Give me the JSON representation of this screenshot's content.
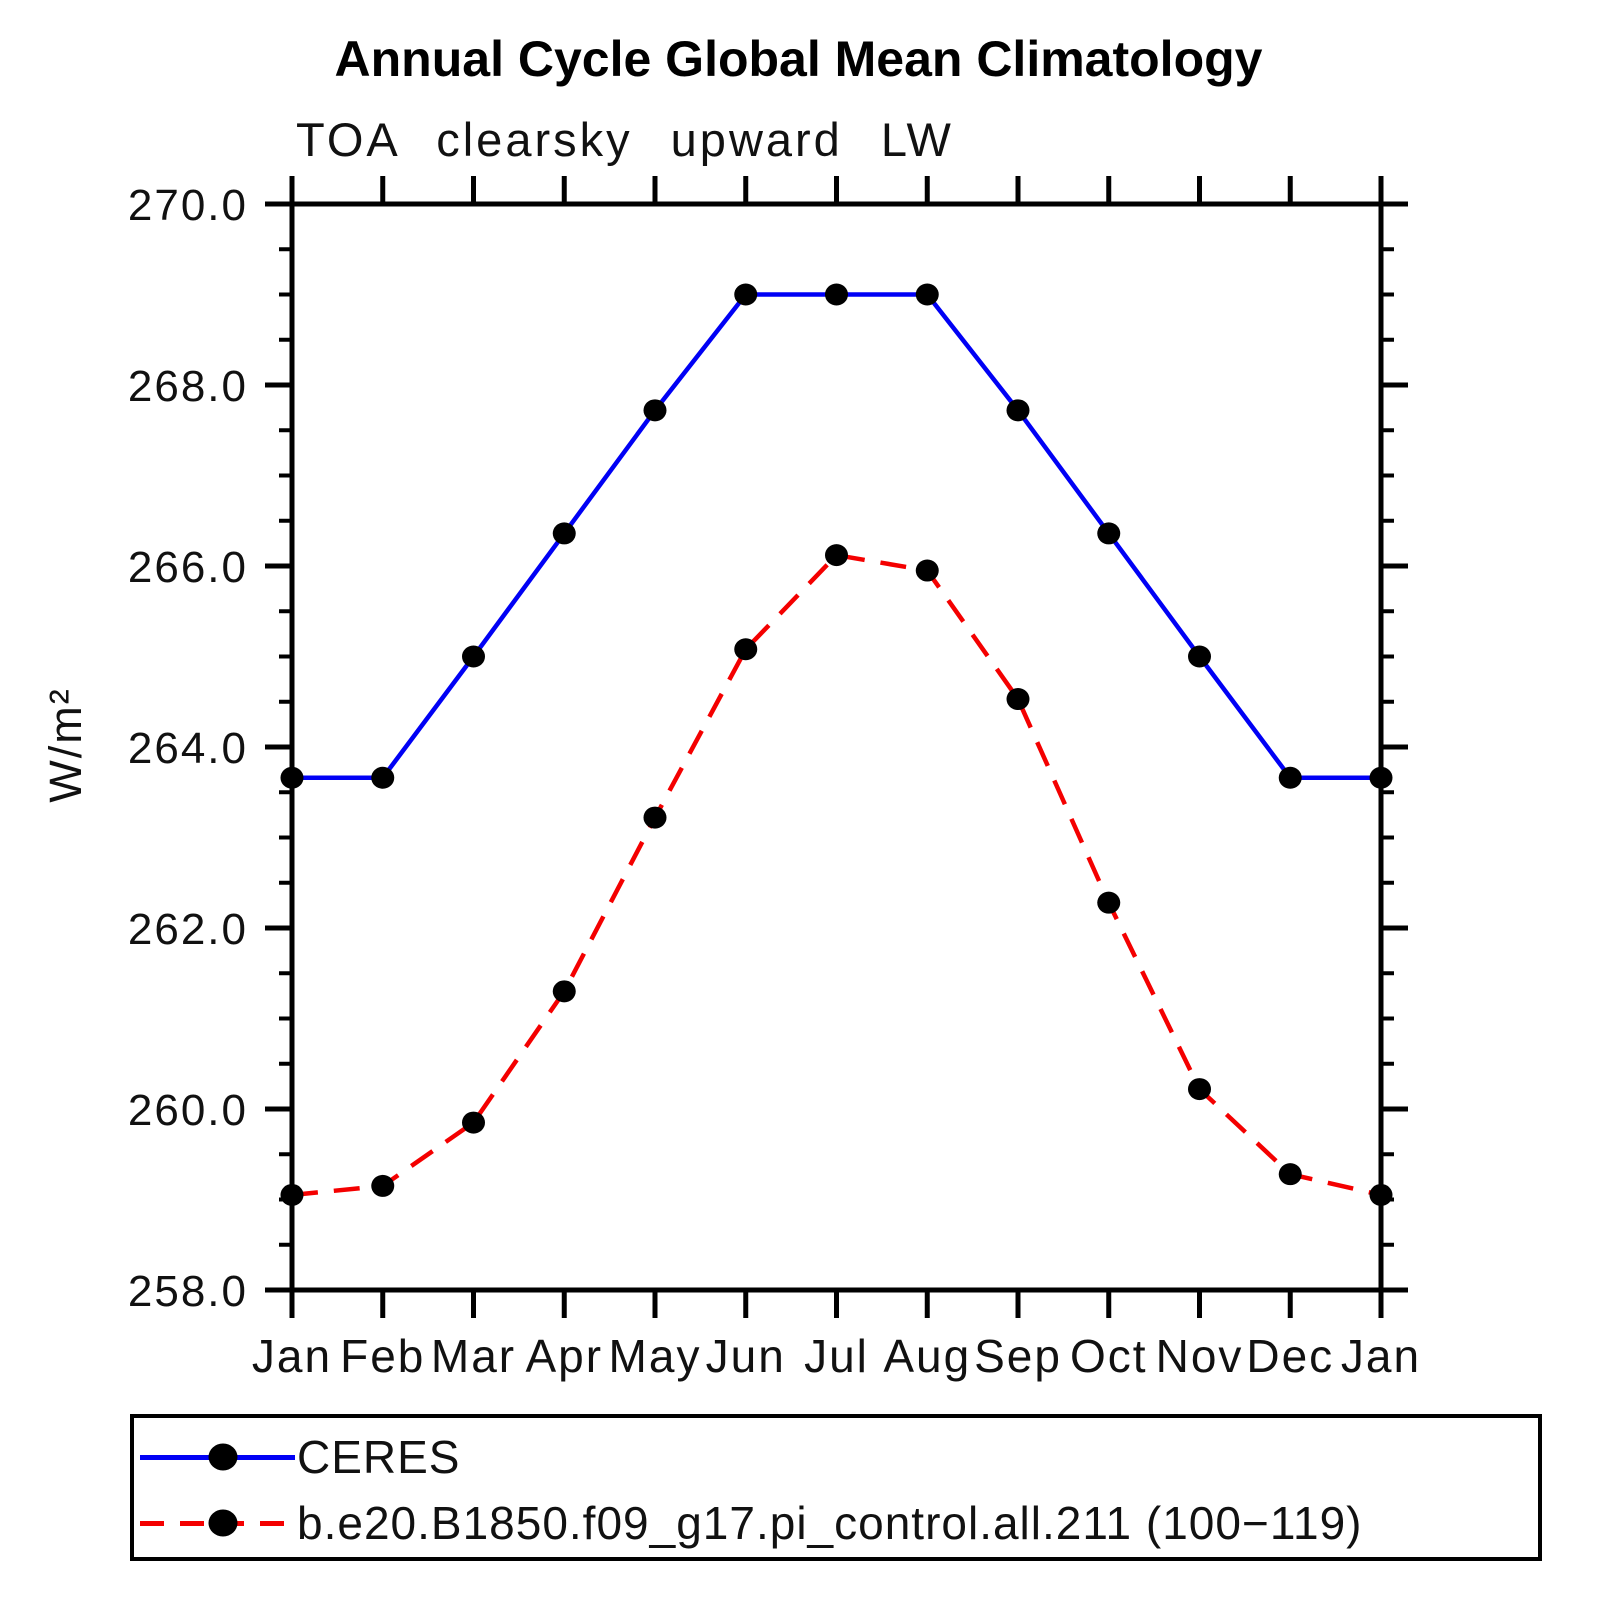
{
  "header": {
    "title": "Annual Cycle Global Mean Climatology"
  },
  "chart_data": {
    "type": "line",
    "title": "Annual Cycle Global Mean Climatology",
    "subtitle": "TOA clearsky upward LW",
    "xlabel": "",
    "ylabel": "W/m²",
    "categories": [
      "Jan",
      "Feb",
      "Mar",
      "Apr",
      "May",
      "Jun",
      "Jul",
      "Aug",
      "Sep",
      "Oct",
      "Nov",
      "Dec",
      "Jan"
    ],
    "ylim": [
      258.0,
      270.0
    ],
    "ytick_step": 2.0,
    "ytick_minor_step": 0.5,
    "ytick_labels": [
      "258.0",
      "260.0",
      "262.0",
      "264.0",
      "266.0",
      "268.0",
      "270.0"
    ],
    "grid": false,
    "legend_position": "bottom-left-box",
    "series": [
      {
        "name": "CERES",
        "color": "#0000f5",
        "line_style": "solid",
        "marker": "filled-circle",
        "marker_color": "#000000",
        "values": [
          263.66,
          263.66,
          265.0,
          266.36,
          267.72,
          269.0,
          269.0,
          269.0,
          267.72,
          266.36,
          265.0,
          263.66,
          263.66
        ]
      },
      {
        "name": "b.e20.B1850.f09_g17.pi_control.all.211 (100−119)",
        "color": "#f40000",
        "line_style": "dashed",
        "marker": "filled-circle",
        "marker_color": "#000000",
        "values": [
          259.05,
          259.15,
          259.85,
          261.3,
          263.22,
          265.08,
          266.12,
          265.95,
          264.53,
          262.28,
          260.22,
          259.28,
          259.05
        ]
      }
    ]
  },
  "legend": {
    "items": [
      {
        "label": "CERES"
      },
      {
        "label": "b.e20.B1850.f09_g17.pi_control.all.211 (100−119)"
      }
    ]
  }
}
